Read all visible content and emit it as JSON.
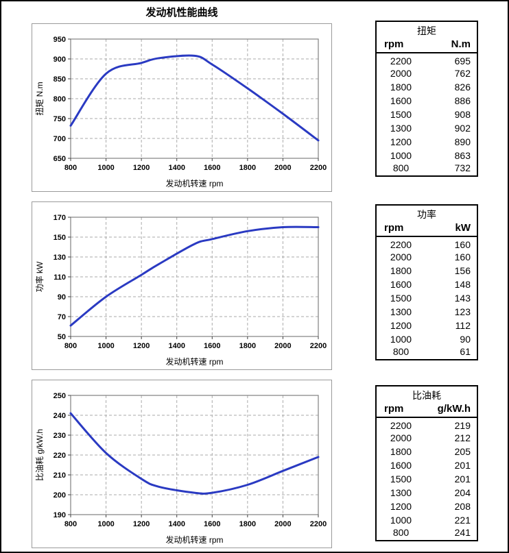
{
  "page_title": "发动机性能曲线",
  "colors": {
    "series_blue": "#2a3ac2",
    "grid_gray": "#aaaaaa",
    "frame_gray": "#808080",
    "table_border_black": "#000000"
  },
  "chart_data": [
    {
      "type": "line",
      "name": "torque-curve",
      "xlabel": "发动机转速  rpm",
      "ylabel": "扭矩 N.m",
      "x": [
        800,
        1000,
        1200,
        1300,
        1500,
        1600,
        1800,
        2000,
        2200
      ],
      "y": [
        732,
        863,
        890,
        902,
        908,
        886,
        826,
        762,
        695
      ],
      "xlim": [
        800,
        2200
      ],
      "xtick": 200,
      "ylim": [
        650,
        950
      ],
      "ytick": 50,
      "grid": true,
      "legend": false,
      "color": "#2a3ac2"
    },
    {
      "type": "line",
      "name": "power-curve",
      "xlabel": "发动机转速 rpm",
      "ylabel": "功率 kW",
      "x": [
        800,
        1000,
        1200,
        1300,
        1500,
        1600,
        1800,
        2000,
        2200
      ],
      "y": [
        61,
        90,
        112,
        123,
        143,
        148,
        156,
        160,
        160
      ],
      "xlim": [
        800,
        2200
      ],
      "xtick": 200,
      "ylim": [
        50,
        170
      ],
      "ytick": 20,
      "grid": true,
      "legend": false,
      "color": "#2a3ac2"
    },
    {
      "type": "line",
      "name": "fuel-consumption-curve",
      "xlabel": "发动机转速  rpm",
      "ylabel": "比油耗 g/kW.h",
      "x": [
        800,
        1000,
        1200,
        1300,
        1500,
        1600,
        1800,
        2000,
        2200
      ],
      "y": [
        241,
        221,
        208,
        204,
        201,
        201,
        205,
        212,
        219
      ],
      "xlim": [
        800,
        2200
      ],
      "xtick": 200,
      "ylim": [
        190,
        250
      ],
      "ytick": 10,
      "grid": true,
      "legend": false,
      "color": "#2a3ac2"
    }
  ],
  "tables": [
    {
      "title": "扭矩",
      "col_rpm": "rpm",
      "col_value": "N.m",
      "rows": [
        [
          2200,
          695
        ],
        [
          2000,
          762
        ],
        [
          1800,
          826
        ],
        [
          1600,
          886
        ],
        [
          1500,
          908
        ],
        [
          1300,
          902
        ],
        [
          1200,
          890
        ],
        [
          1000,
          863
        ],
        [
          800,
          732
        ]
      ]
    },
    {
      "title": "功率",
      "col_rpm": "rpm",
      "col_value": "kW",
      "rows": [
        [
          2200,
          160
        ],
        [
          2000,
          160
        ],
        [
          1800,
          156
        ],
        [
          1600,
          148
        ],
        [
          1500,
          143
        ],
        [
          1300,
          123
        ],
        [
          1200,
          112
        ],
        [
          1000,
          90
        ],
        [
          800,
          61
        ]
      ]
    },
    {
      "title": "比油耗",
      "col_rpm": "rpm",
      "col_value": "g/kW.h",
      "rows": [
        [
          2200,
          219
        ],
        [
          2000,
          212
        ],
        [
          1800,
          205
        ],
        [
          1600,
          201
        ],
        [
          1500,
          201
        ],
        [
          1300,
          204
        ],
        [
          1200,
          208
        ],
        [
          1000,
          221
        ],
        [
          800,
          241
        ]
      ]
    }
  ]
}
